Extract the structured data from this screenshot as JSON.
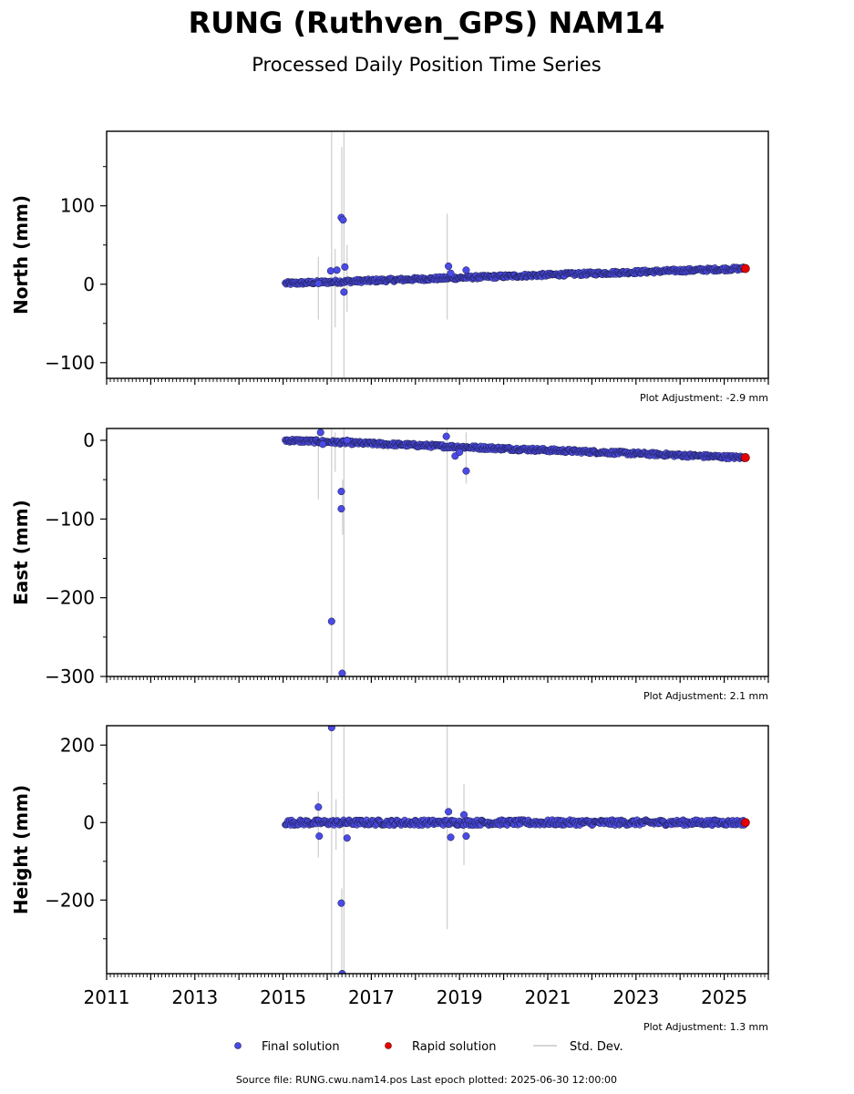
{
  "title": "RUNG (Ruthven_GPS) NAM14",
  "subtitle": "Processed Daily Position Time Series",
  "legend": {
    "final_label": "Final solution",
    "rapid_label": "Rapid solution",
    "std_label": "Std. Dev."
  },
  "footer": "Source file: RUNG.cwu.nam14.pos  Last epoch plotted: 2025-06-30 12:00:00",
  "colors": {
    "final": "#4a4ae6",
    "final_edge": "#1a1a40",
    "rapid": "#e60000",
    "std": "#b0b0b0"
  },
  "chart_data": [
    {
      "type": "scatter",
      "ylabel": "North (mm)",
      "adjustment": "Plot Adjustment: -2.9 mm",
      "xlim": [
        2011,
        2026
      ],
      "ylim": [
        -120,
        195
      ],
      "yticks": [
        -100,
        0,
        100
      ],
      "ytick_labels": [
        "−100",
        "0",
        "100"
      ],
      "show_xtick_labels": false,
      "trend": {
        "x": [
          2015.05,
          2025.45
        ],
        "y": [
          1,
          20
        ]
      },
      "outliers": [
        [
          2016.08,
          17
        ],
        [
          2016.22,
          18
        ],
        [
          2016.32,
          85
        ],
        [
          2016.36,
          82
        ],
        [
          2016.4,
          22
        ],
        [
          2016.38,
          -10
        ],
        [
          2015.8,
          1
        ],
        [
          2018.75,
          23
        ],
        [
          2018.8,
          14
        ],
        [
          2019.15,
          18
        ]
      ],
      "errorbars": [
        [
          2015.8,
          -45,
          35
        ],
        [
          2016.1,
          -120,
          195
        ],
        [
          2016.18,
          -55,
          45
        ],
        [
          2016.33,
          25,
          175
        ],
        [
          2016.38,
          -120,
          195
        ],
        [
          2016.45,
          -35,
          50
        ],
        [
          2018.72,
          -45,
          90
        ]
      ],
      "rapid": [
        [
          2025.48,
          20
        ]
      ]
    },
    {
      "type": "scatter",
      "ylabel": "East (mm)",
      "adjustment": "Plot Adjustment: 2.1 mm",
      "xlim": [
        2011,
        2026
      ],
      "ylim": [
        -300,
        15
      ],
      "yticks": [
        -300,
        -200,
        -100,
        0
      ],
      "ytick_labels": [
        "−300",
        "−200",
        "−100",
        "0"
      ],
      "show_xtick_labels": false,
      "trend": {
        "x": [
          2015.05,
          2025.45
        ],
        "y": [
          0,
          -22
        ]
      },
      "outliers": [
        [
          2015.85,
          10
        ],
        [
          2015.9,
          -5
        ],
        [
          2016.1,
          -230
        ],
        [
          2016.32,
          -65
        ],
        [
          2016.32,
          -87
        ],
        [
          2016.34,
          -296
        ],
        [
          2016.45,
          0
        ],
        [
          2018.7,
          5
        ],
        [
          2018.9,
          -20
        ],
        [
          2019.15,
          -39
        ],
        [
          2019.0,
          -15
        ]
      ],
      "errorbars": [
        [
          2015.8,
          -75,
          10
        ],
        [
          2016.1,
          -300,
          15
        ],
        [
          2016.18,
          -40,
          10
        ],
        [
          2016.35,
          -120,
          -50
        ],
        [
          2016.38,
          -300,
          15
        ],
        [
          2018.72,
          -300,
          15
        ],
        [
          2019.15,
          -55,
          10
        ]
      ],
      "rapid": [
        [
          2025.48,
          -22
        ]
      ]
    },
    {
      "type": "scatter",
      "ylabel": "Height (mm)",
      "adjustment": "Plot Adjustment: 1.3 mm",
      "xlim": [
        2011,
        2026
      ],
      "ylim": [
        -390,
        250
      ],
      "yticks": [
        -200,
        0,
        200
      ],
      "ytick_labels": [
        "−200",
        "0",
        "200"
      ],
      "xticks": [
        2011,
        2013,
        2015,
        2017,
        2019,
        2021,
        2023,
        2025
      ],
      "show_xtick_labels": true,
      "trend": {
        "x": [
          2015.05,
          2025.45
        ],
        "y": [
          0,
          0
        ]
      },
      "outliers": [
        [
          2015.8,
          40
        ],
        [
          2015.82,
          -35
        ],
        [
          2016.1,
          245
        ],
        [
          2016.32,
          -208
        ],
        [
          2016.34,
          -390
        ],
        [
          2016.45,
          -40
        ],
        [
          2018.75,
          28
        ],
        [
          2018.8,
          -38
        ],
        [
          2019.15,
          -35
        ],
        [
          2019.1,
          20
        ]
      ],
      "errorbars": [
        [
          2015.8,
          -90,
          80
        ],
        [
          2016.1,
          -390,
          250
        ],
        [
          2016.2,
          -70,
          60
        ],
        [
          2016.33,
          -390,
          -170
        ],
        [
          2016.38,
          -390,
          250
        ],
        [
          2018.72,
          -275,
          250
        ],
        [
          2019.1,
          -110,
          100
        ]
      ],
      "rapid": [
        [
          2025.48,
          0
        ]
      ]
    }
  ]
}
